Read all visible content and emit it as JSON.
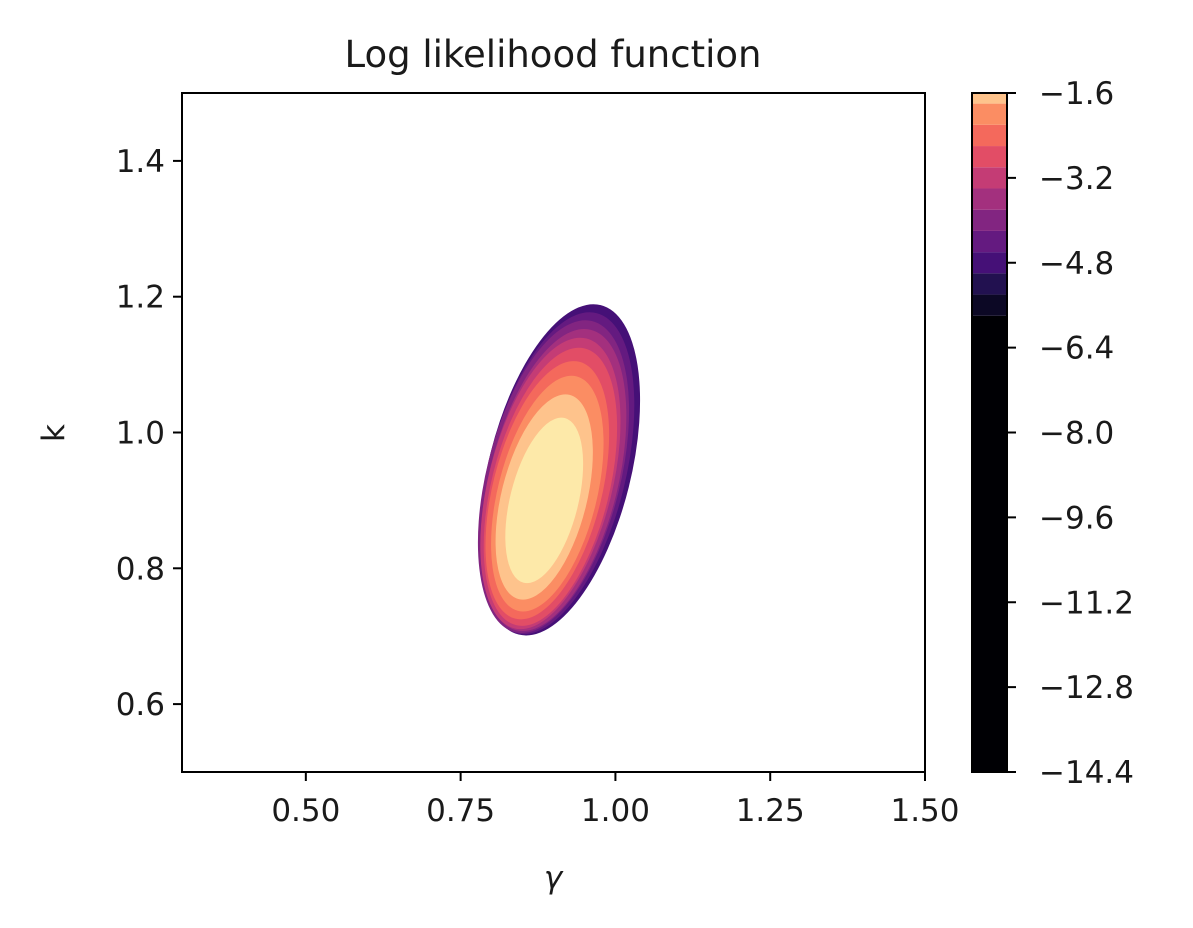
{
  "chart_data": {
    "type": "contourf",
    "title": "Log likelihood function",
    "xlabel": "γ",
    "ylabel": "k",
    "xlim": [
      0.3,
      1.5
    ],
    "ylim": [
      0.5,
      1.5
    ],
    "x_ticks": [
      "0.50",
      "0.75",
      "1.00",
      "1.25",
      "1.50"
    ],
    "y_ticks": [
      "0.6",
      "0.8",
      "1.0",
      "1.2",
      "1.4"
    ],
    "colormap": "magma",
    "colorbar": {
      "min": -14.4,
      "max": -1.6,
      "ticks": [
        "−1.6",
        "−3.2",
        "−4.8",
        "−6.4",
        "−8.0",
        "−9.6",
        "−11.2",
        "−12.8",
        "−14.4"
      ],
      "bands": [
        {
          "from": -14.4,
          "to": -5.8,
          "color": "#000004"
        },
        {
          "from": -5.8,
          "to": -5.4,
          "color": "#0c0825"
        },
        {
          "from": -5.4,
          "to": -5.0,
          "color": "#221150"
        },
        {
          "from": -5.0,
          "to": -4.6,
          "color": "#451077"
        },
        {
          "from": -4.6,
          "to": -4.2,
          "color": "#641a80"
        },
        {
          "from": -4.2,
          "to": -3.8,
          "color": "#822581"
        },
        {
          "from": -3.8,
          "to": -3.4,
          "color": "#a3307e"
        },
        {
          "from": -3.4,
          "to": -3.0,
          "color": "#c43c75"
        },
        {
          "from": -3.0,
          "to": -2.6,
          "color": "#e24d66"
        },
        {
          "from": -2.6,
          "to": -2.2,
          "color": "#f4695c"
        },
        {
          "from": -2.2,
          "to": -1.8,
          "color": "#fb8d63"
        },
        {
          "from": -1.8,
          "to": -1.6,
          "color": "#fec38c"
        },
        {
          "from": -1.6,
          "to": -1.4,
          "color": "#fde9a9"
        }
      ]
    },
    "contours": [
      {
        "level": -5.0,
        "color": "#451077",
        "center": [
          0.91,
          0.945
        ],
        "rx": 0.115,
        "ry": 0.25,
        "rot_deg": 14
      },
      {
        "level": -4.6,
        "color": "#641a80",
        "center": [
          0.905,
          0.94
        ],
        "rx": 0.111,
        "ry": 0.243,
        "rot_deg": 14
      },
      {
        "level": -4.2,
        "color": "#822581",
        "center": [
          0.9,
          0.935
        ],
        "rx": 0.108,
        "ry": 0.236,
        "rot_deg": 14
      },
      {
        "level": -3.8,
        "color": "#a3307e",
        "center": [
          0.9,
          0.93
        ],
        "rx": 0.104,
        "ry": 0.228,
        "rot_deg": 14
      },
      {
        "level": -3.4,
        "color": "#c43c75",
        "center": [
          0.895,
          0.925
        ],
        "rx": 0.1,
        "ry": 0.22,
        "rot_deg": 14
      },
      {
        "level": -3.0,
        "color": "#e24d66",
        "center": [
          0.895,
          0.92
        ],
        "rx": 0.095,
        "ry": 0.21,
        "rot_deg": 14
      },
      {
        "level": -2.6,
        "color": "#f4695c",
        "center": [
          0.89,
          0.915
        ],
        "rx": 0.088,
        "ry": 0.195,
        "rot_deg": 14
      },
      {
        "level": -2.2,
        "color": "#fb8d63",
        "center": [
          0.89,
          0.91
        ],
        "rx": 0.08,
        "ry": 0.178,
        "rot_deg": 14
      },
      {
        "level": -1.8,
        "color": "#fec38c",
        "center": [
          0.885,
          0.905
        ],
        "rx": 0.069,
        "ry": 0.155,
        "rot_deg": 14
      },
      {
        "level": -1.6,
        "color": "#fde9a9",
        "center": [
          0.885,
          0.9
        ],
        "rx": 0.055,
        "ry": 0.125,
        "rot_deg": 14
      }
    ]
  }
}
